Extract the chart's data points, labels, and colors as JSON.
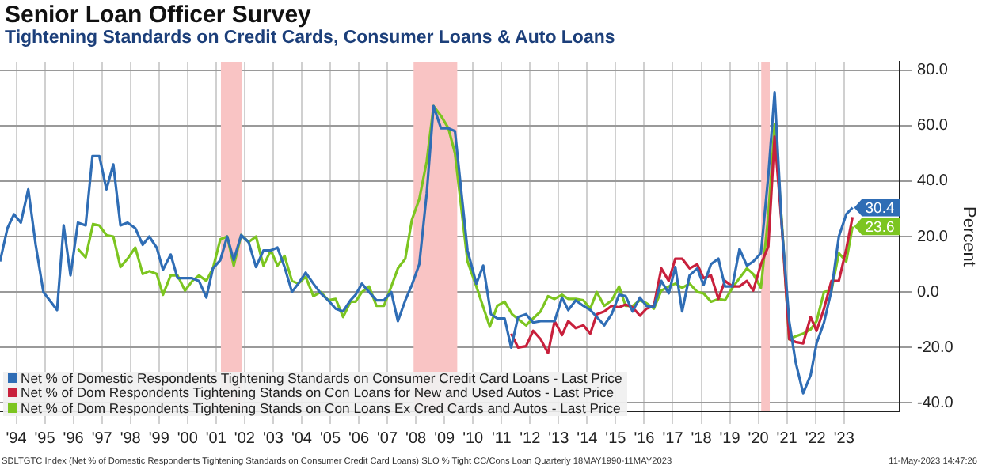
{
  "chart_data": {
    "type": "line",
    "title": "Senior Loan Officer Survey",
    "subtitle": "Tightening Standards on Credit Cards, Consumer Loans & Auto Loans",
    "ylabel": "Percent",
    "xlim": [
      1993.43,
      2024.95
    ],
    "ylim": [
      -43,
      83
    ],
    "yticks": [
      {
        "value": -40,
        "label": "-40.0"
      },
      {
        "value": -20,
        "label": "-20.0"
      },
      {
        "value": 0,
        "label": "0.0"
      },
      {
        "value": 20,
        "label": "20.0"
      },
      {
        "value": 40,
        "label": "40.0"
      },
      {
        "value": 60,
        "label": "60.0"
      },
      {
        "value": 80,
        "label": "80.0"
      }
    ],
    "xticks": [
      {
        "value": 1994,
        "label": "'94"
      },
      {
        "value": 1995,
        "label": "'95"
      },
      {
        "value": 1996,
        "label": "'96"
      },
      {
        "value": 1997,
        "label": "'97"
      },
      {
        "value": 1998,
        "label": "'98"
      },
      {
        "value": 1999,
        "label": "'99"
      },
      {
        "value": 2000,
        "label": "'00"
      },
      {
        "value": 2001,
        "label": "'01"
      },
      {
        "value": 2002,
        "label": "'02"
      },
      {
        "value": 2003,
        "label": "'03"
      },
      {
        "value": 2004,
        "label": "'04"
      },
      {
        "value": 2005,
        "label": "'05"
      },
      {
        "value": 2006,
        "label": "'06"
      },
      {
        "value": 2007,
        "label": "'07"
      },
      {
        "value": 2008,
        "label": "'08"
      },
      {
        "value": 2009,
        "label": "'09"
      },
      {
        "value": 2010,
        "label": "'10"
      },
      {
        "value": 2011,
        "label": "'11"
      },
      {
        "value": 2012,
        "label": "'12"
      },
      {
        "value": 2013,
        "label": "'13"
      },
      {
        "value": 2014,
        "label": "'14"
      },
      {
        "value": 2015,
        "label": "'15"
      },
      {
        "value": 2016,
        "label": "'16"
      },
      {
        "value": 2017,
        "label": "'17"
      },
      {
        "value": 2018,
        "label": "'18"
      },
      {
        "value": 2019,
        "label": "'19"
      },
      {
        "value": 2020,
        "label": "'20"
      },
      {
        "value": 2021,
        "label": "'21"
      },
      {
        "value": 2022,
        "label": "'22"
      },
      {
        "value": 2023,
        "label": "'23"
      }
    ],
    "grid": true,
    "legend": "bottom left",
    "marker": "none",
    "line_style": "solid",
    "bands": [
      {
        "axis": "x",
        "from": 2001.17,
        "to": 2001.9,
        "color": "#f9c4c4"
      },
      {
        "axis": "x",
        "from": 2007.92,
        "to": 2009.45,
        "color": "#f9c4c4"
      },
      {
        "axis": "x",
        "from": 2020.1,
        "to": 2020.4,
        "color": "#f9c4c4"
      }
    ],
    "series": [
      {
        "name": "Net % of Domestic Respondents Tightening Standards on Consumer Credit Card Loans - Last Price",
        "color": "#2f6db5",
        "x": [
          1993.43,
          1993.69,
          1993.92,
          1994.16,
          1994.42,
          1994.68,
          1994.95,
          1995.43,
          1995.66,
          1995.9,
          1996.16,
          1996.43,
          1996.67,
          1996.91,
          1997.16,
          1997.4,
          1997.65,
          1997.9,
          1998.17,
          1998.43,
          1998.66,
          1998.92,
          1999.14,
          1999.41,
          1999.65,
          1999.91,
          2000.14,
          2000.4,
          2000.66,
          2000.89,
          2001.15,
          2001.39,
          2001.62,
          2001.88,
          2002.14,
          2002.4,
          2002.66,
          2002.92,
          2003.15,
          2003.4,
          2003.66,
          2003.88,
          2004.14,
          2004.41,
          2004.67,
          2004.93,
          2005.19,
          2005.45,
          2005.71,
          2005.89,
          2006.11,
          2006.36,
          2006.62,
          2006.88,
          2007.14,
          2007.37,
          2007.63,
          2007.86,
          2008.12,
          2008.38,
          2008.62,
          2008.88,
          2009.14,
          2009.37,
          2009.81,
          2010.12,
          2010.36,
          2010.63,
          2010.85,
          2011.11,
          2011.34,
          2011.58,
          2011.86,
          2012.11,
          2012.37,
          2012.63,
          2012.86,
          2013.12,
          2013.34,
          2013.6,
          2013.87,
          2014.11,
          2014.34,
          2014.6,
          2014.86,
          2015.12,
          2015.35,
          2015.59,
          2015.85,
          2016.08,
          2016.34,
          2016.6,
          2016.86,
          2017.09,
          2017.33,
          2017.59,
          2017.86,
          2018.08,
          2018.34,
          2018.6,
          2018.83,
          2019.09,
          2019.34,
          2019.6,
          2019.82,
          2020.09,
          2020.35,
          2020.57,
          2020.82,
          2021.08,
          2021.3,
          2021.57,
          2021.83,
          2022.04,
          2022.3,
          2022.56,
          2022.82,
          2023.08,
          2023.3
        ],
        "values": [
          11,
          23,
          28,
          25,
          37,
          17,
          0,
          -6.5,
          24,
          6,
          25,
          24,
          49,
          49,
          37,
          46,
          24,
          25,
          23,
          17,
          20,
          16,
          8,
          13.5,
          5,
          5,
          5,
          4,
          -2,
          8.5,
          11.5,
          20,
          11.5,
          20.5,
          18,
          9,
          15,
          15,
          16,
          9,
          0,
          3,
          7,
          3,
          -0.5,
          -3,
          -6,
          -7,
          -3,
          -1,
          3,
          0,
          -3,
          -3,
          0,
          -10.5,
          -3,
          2.5,
          10,
          35.5,
          67,
          59,
          59,
          58,
          15,
          3,
          9.5,
          -8,
          -9.5,
          -9.5,
          -20,
          -9,
          -8,
          -11,
          -10.5,
          -10.5,
          -10.5,
          -2,
          -6.5,
          -3,
          -5,
          -6.5,
          -9,
          -12,
          -8,
          -1,
          -1.5,
          -7,
          -2,
          -5,
          -5.5,
          4,
          -0.5,
          9,
          -7,
          6,
          8.5,
          2.5,
          10,
          12,
          2,
          2,
          15.5,
          9.5,
          11,
          14,
          42,
          72,
          24,
          -10.5,
          -25,
          -36.5,
          -30,
          -18.5,
          -11,
          0.5,
          20,
          28,
          30.4
        ]
      },
      {
        "name": "Net % of Dom Respondents Tightening Stands on Con Loans for New and Used Autos - Last Price",
        "color": "#c8203c",
        "x": [
          2011.34,
          2011.58,
          2011.86,
          2012.11,
          2012.37,
          2012.63,
          2012.86,
          2013.12,
          2013.34,
          2013.6,
          2013.87,
          2014.11,
          2014.34,
          2014.6,
          2014.86,
          2015.12,
          2015.35,
          2015.59,
          2015.85,
          2016.08,
          2016.34,
          2016.6,
          2016.86,
          2017.09,
          2017.33,
          2017.59,
          2017.86,
          2018.08,
          2018.34,
          2018.6,
          2018.83,
          2019.09,
          2019.34,
          2019.6,
          2019.82,
          2020.09,
          2020.35,
          2020.57,
          2020.82,
          2021.08,
          2021.3,
          2021.57,
          2021.83,
          2022.04,
          2022.3,
          2022.56,
          2022.82,
          2023.08,
          2023.3
        ],
        "values": [
          -15,
          -20,
          -19.5,
          -14,
          -17,
          -22,
          -10.5,
          -15.5,
          -10.5,
          -13,
          -12,
          -15,
          -8,
          -7,
          -5,
          -5.5,
          -4.5,
          -5.5,
          -8.5,
          -6,
          -5,
          8.5,
          4,
          12,
          12,
          8.5,
          10,
          5,
          6,
          -2.5,
          4,
          2,
          2,
          4,
          0.5,
          10,
          16.5,
          56,
          24,
          -17,
          -18,
          -18.5,
          -9,
          -14,
          -6,
          4,
          4,
          15.5,
          27
        ]
      },
      {
        "name": "Net % of Dom Respondents Tightening Stands on Con Loans Ex Cred Cards and Autos - Last Price",
        "color": "#7cc520",
        "x": [
          1996.16,
          1996.43,
          1996.69,
          1996.91,
          1997.16,
          1997.4,
          1997.65,
          1997.9,
          1998.17,
          1998.43,
          1998.66,
          1998.92,
          1999.14,
          1999.41,
          1999.65,
          1999.91,
          2000.17,
          2000.4,
          2000.66,
          2000.89,
          2001.15,
          2001.39,
          2001.62,
          2001.88,
          2002.14,
          2002.4,
          2002.66,
          2002.92,
          2003.15,
          2003.4,
          2003.66,
          2003.88,
          2004.14,
          2004.41,
          2004.67,
          2004.93,
          2005.19,
          2005.45,
          2005.71,
          2005.89,
          2006.11,
          2006.36,
          2006.62,
          2006.88,
          2007.14,
          2007.37,
          2007.63,
          2007.86,
          2008.12,
          2008.38,
          2008.62,
          2008.88,
          2009.14,
          2009.37,
          2009.81,
          2010.12,
          2010.59,
          2010.85,
          2011.11,
          2011.37,
          2011.86,
          2012.11,
          2012.37,
          2012.63,
          2012.86,
          2013.12,
          2013.34,
          2013.6,
          2013.87,
          2014.11,
          2014.34,
          2014.6,
          2014.86,
          2015.12,
          2015.35,
          2015.59,
          2015.85,
          2016.08,
          2016.34,
          2016.6,
          2016.86,
          2017.09,
          2017.33,
          2017.59,
          2017.86,
          2018.08,
          2018.34,
          2018.6,
          2018.83,
          2019.09,
          2019.34,
          2019.6,
          2019.82,
          2020.09,
          2020.35,
          2020.57,
          2020.82,
          2021.08,
          2021.3,
          2021.57,
          2021.83,
          2022.04,
          2022.3,
          2022.56,
          2022.82,
          2023.08,
          2023.3
        ],
        "values": [
          15.5,
          12.5,
          24.5,
          24,
          20.5,
          20,
          9,
          12,
          16,
          6.5,
          7.5,
          6.5,
          -1,
          6,
          6,
          0.5,
          4,
          6,
          4,
          8.5,
          19,
          20,
          9.5,
          20.5,
          18,
          20,
          9.5,
          15,
          9.5,
          13,
          4,
          3,
          5.5,
          -1.5,
          0,
          -3,
          -2.5,
          -9,
          -3.5,
          -3.5,
          0,
          2,
          -5,
          -5,
          2,
          8.5,
          12,
          26,
          33.5,
          47,
          67,
          63.5,
          59,
          50,
          11,
          2,
          -12.5,
          -5,
          -3.5,
          -8,
          -12,
          -9.5,
          -7,
          -1.5,
          -2.5,
          -1,
          -2.5,
          -2.5,
          -3,
          -6,
          0,
          -5,
          -3,
          2,
          -5,
          -5,
          -3,
          -4,
          -6,
          0.5,
          2,
          3,
          1.5,
          3,
          0,
          -0.5,
          -3.5,
          -2.5,
          -3,
          1.5,
          5,
          8.5,
          6.5,
          1.5,
          27.5,
          60.5,
          25.5,
          -17,
          -16,
          -15,
          -13.5,
          -10.5,
          0,
          0.5,
          14,
          11,
          23.6
        ]
      }
    ],
    "annotations": [
      {
        "text": "30.4",
        "x": 2023.3,
        "y": 30.4
      },
      {
        "text": "23.6",
        "x": 2023.3,
        "y": 23.6
      },
      "SDLTGTC Index (Net % of Domestic Respondents Tightening Standards on Consumer Credit Card Loans) SLO % Tight CC/Cons Loan  Quarterly 18MAY1990-11MAY2023",
      "11-May-2023 14:47:26"
    ]
  }
}
